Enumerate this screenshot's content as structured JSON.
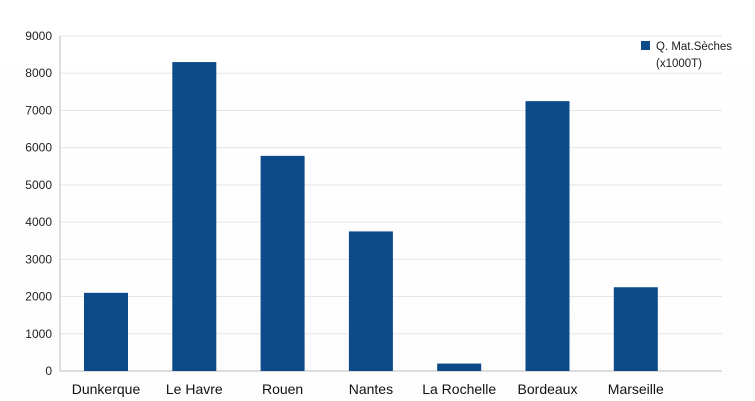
{
  "chart_data": {
    "type": "bar",
    "categories": [
      "Dunkerque",
      "Le Havre",
      "Rouen",
      "Nantes",
      "La Rochelle",
      "Bordeaux",
      "Marseille"
    ],
    "series": [
      {
        "name": "Q. Mat.Sèches (x1000T)",
        "values": [
          2100,
          8300,
          5780,
          3750,
          200,
          7250,
          2250
        ]
      }
    ],
    "yticks": [
      0,
      1000,
      2000,
      3000,
      4000,
      5000,
      6000,
      7000,
      8000,
      9000
    ],
    "ylim": [
      0,
      9000
    ],
    "grid": true,
    "legend": {
      "position": "top-right",
      "lines": [
        "Q. Mat.Sèches",
        "(x1000T)"
      ]
    },
    "colors": {
      "bar": "#0c4a8a",
      "grid": "#e6e6e6",
      "axis": "#bdbdbd"
    }
  }
}
